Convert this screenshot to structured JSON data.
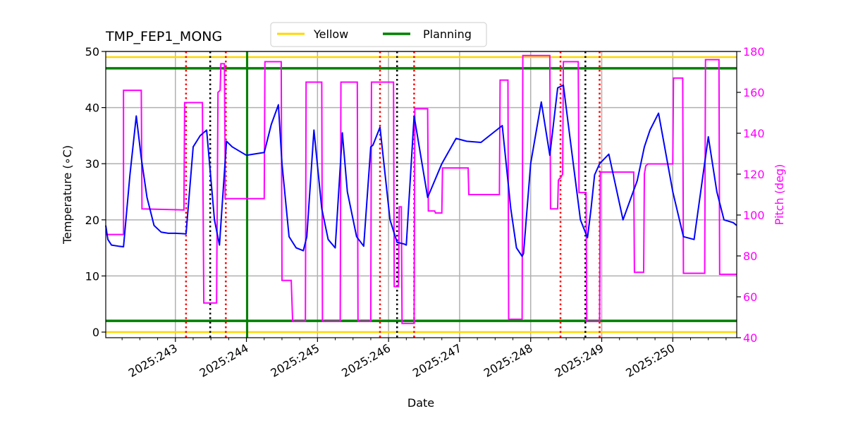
{
  "chart_data": {
    "type": "line",
    "title": "TMP_FEP1_MONG",
    "xlabel": "Date",
    "ylabel": "Temperature ($^\\circ$C)",
    "ylabel_display": "Temperature (∘C)",
    "y2label": "Pitch (deg)",
    "xlim": [
      242.02,
      250.9
    ],
    "ylim": [
      -1,
      50
    ],
    "y2lim": [
      40,
      180
    ],
    "grid": true,
    "x_ticks": [
      243,
      244,
      245,
      246,
      247,
      248,
      249,
      250
    ],
    "x_tick_labels": [
      "2025:243",
      "2025:244",
      "2025:245",
      "2025:246",
      "2025:247",
      "2025:248",
      "2025:249",
      "2025:250"
    ],
    "y_ticks": [
      0,
      10,
      20,
      30,
      40,
      50
    ],
    "y2_ticks": [
      40,
      60,
      80,
      100,
      120,
      140,
      160,
      180
    ],
    "legend": {
      "position": "upper center, above plot",
      "entries": [
        {
          "label": "Yellow",
          "color": "#ffd700"
        },
        {
          "label": "Planning",
          "color": "#008000"
        }
      ]
    },
    "limits": {
      "yellow": [
        0,
        49
      ],
      "planning": [
        2,
        47
      ]
    },
    "vertical_lines": {
      "planning_green_solid": [
        244.01
      ],
      "red_dotted": [
        243.15,
        243.71,
        245.88,
        246.36,
        248.42,
        248.97
      ],
      "black_dotted": [
        243.49,
        246.12,
        248.77
      ]
    },
    "series": [
      {
        "name": "Temperature",
        "axis": "left",
        "color": "#0000ff",
        "x": [
          242.02,
          242.05,
          242.1,
          242.2,
          242.27,
          242.36,
          242.45,
          242.52,
          242.6,
          242.7,
          242.8,
          242.9,
          243.0,
          243.15,
          243.25,
          243.35,
          243.44,
          243.55,
          243.62,
          243.72,
          243.8,
          244.0,
          244.25,
          244.35,
          244.45,
          244.5,
          244.6,
          244.7,
          244.8,
          244.85,
          244.95,
          245.06,
          245.15,
          245.25,
          245.35,
          245.42,
          245.55,
          245.65,
          245.75,
          245.78,
          245.88,
          246.02,
          246.12,
          246.22,
          246.25,
          246.36,
          246.55,
          246.75,
          246.95,
          247.1,
          247.3,
          247.6,
          247.72,
          247.8,
          247.88,
          247.9,
          248.0,
          248.15,
          248.27,
          248.38,
          248.46,
          248.55,
          248.7,
          248.8,
          248.85,
          248.9,
          248.97,
          249.1,
          249.3,
          249.5,
          249.6,
          249.68,
          249.8,
          250.0,
          250.15,
          250.3,
          250.5,
          250.62,
          250.72,
          250.85,
          250.9
        ],
        "values": [
          19,
          16.5,
          15.5,
          15.3,
          15.2,
          28,
          38.5,
          31,
          24,
          19,
          17.8,
          17.6,
          17.6,
          17.5,
          33,
          35,
          36,
          20,
          15.5,
          34,
          33,
          31.5,
          32,
          37,
          40.5,
          30,
          17,
          15,
          14.5,
          17,
          36,
          22,
          16.5,
          15,
          35.5,
          25,
          17,
          15.3,
          33,
          33.3,
          36.5,
          20,
          16,
          15.7,
          15.5,
          38.5,
          24,
          30,
          34.5,
          34,
          33.8,
          36.8,
          22,
          15,
          13.5,
          14,
          30,
          41,
          31.5,
          43.5,
          44,
          35,
          20,
          16.8,
          22,
          28,
          30,
          31.7,
          20,
          27,
          33,
          36,
          39,
          25,
          17,
          16.5,
          34.8,
          25,
          20,
          19.5,
          19
        ]
      },
      {
        "name": "Pitch",
        "axis": "right",
        "color": "#ff00ff",
        "x": [
          242.02,
          242.27,
          242.27,
          242.52,
          242.53,
          243.12,
          243.13,
          243.38,
          243.4,
          243.58,
          243.6,
          243.63,
          243.64,
          243.69,
          243.7,
          243.7,
          243.71,
          244.25,
          244.26,
          244.49,
          244.5,
          244.63,
          244.65,
          244.83,
          244.84,
          245.06,
          245.07,
          245.32,
          245.33,
          245.56,
          245.57,
          245.75,
          245.76,
          246.07,
          246.08,
          246.14,
          246.15,
          246.18,
          246.19,
          246.36,
          246.37,
          246.55,
          246.56,
          246.65,
          246.66,
          246.75,
          246.76,
          247.12,
          247.13,
          247.56,
          247.57,
          247.68,
          247.69,
          247.88,
          247.89,
          248.27,
          248.28,
          248.38,
          248.39,
          248.41,
          248.42,
          248.45,
          248.46,
          248.67,
          248.68,
          248.78,
          248.79,
          248.97,
          248.98,
          249.45,
          249.46,
          249.59,
          249.6,
          249.6,
          249.62,
          249.65,
          249.66,
          250.0,
          250.01,
          250.14,
          250.15,
          250.45,
          250.46,
          250.65,
          250.66,
          250.9
        ],
        "values": [
          90.5,
          90.5,
          161,
          161,
          103,
          102.5,
          155,
          155,
          57,
          57,
          160,
          161,
          174,
          174,
          128,
          108,
          108,
          108,
          175,
          175,
          68,
          68,
          48,
          48,
          165,
          165,
          48,
          48,
          165,
          165,
          48,
          48,
          165,
          165,
          65,
          65,
          104,
          104,
          47,
          47,
          152,
          152,
          102,
          102,
          101,
          101,
          123,
          123,
          110,
          110,
          166,
          166,
          49,
          49,
          178,
          178,
          103,
          103,
          117,
          118,
          118,
          120,
          175,
          175,
          111,
          111,
          48,
          48,
          121,
          121,
          72,
          72,
          119,
          120,
          124,
          125,
          125,
          125,
          167,
          167,
          71.5,
          71.5,
          176,
          176,
          71,
          71
        ]
      }
    ]
  }
}
